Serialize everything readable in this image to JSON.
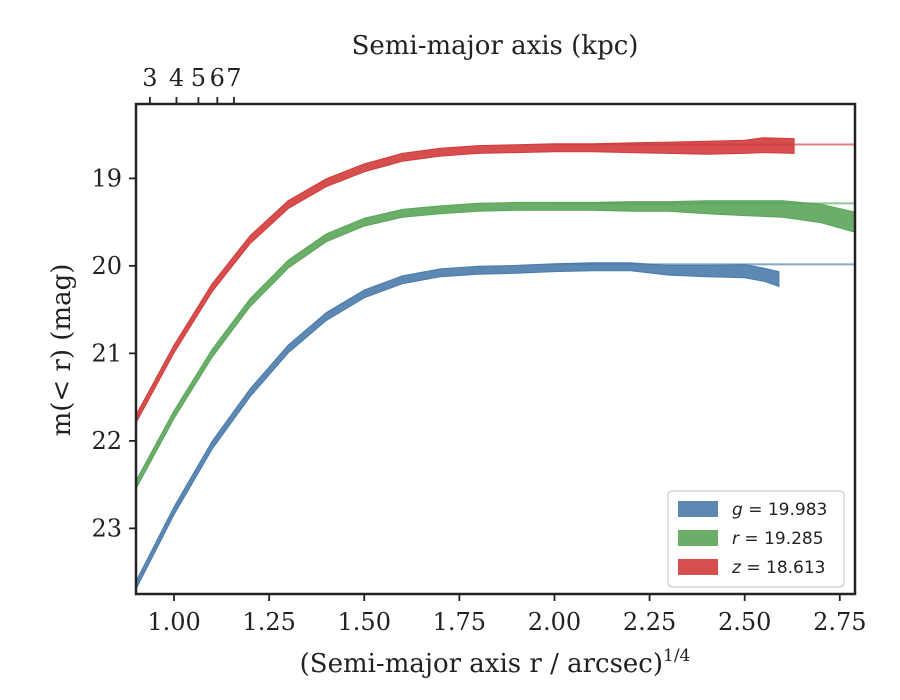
{
  "chart_data": {
    "type": "line",
    "xlabel": "(Semi-major axis r / arcsec)",
    "xlabel_exponent": "1/4",
    "ylabel": "m(< r) (mag)",
    "top_xlabel": "Semi-major axis (kpc)",
    "xlim": [
      0.9,
      2.79
    ],
    "ylim": [
      23.75,
      18.15
    ],
    "y_inverted": true,
    "xticks": [
      1.0,
      1.25,
      1.5,
      1.75,
      2.0,
      2.25,
      2.5,
      2.75
    ],
    "xtick_labels": [
      "1.00",
      "1.25",
      "1.50",
      "1.75",
      "2.00",
      "2.25",
      "2.50",
      "2.75"
    ],
    "yticks": [
      19,
      20,
      21,
      22,
      23
    ],
    "ytick_labels": [
      "19",
      "20",
      "21",
      "22",
      "23"
    ],
    "top_xticks": [
      3,
      4,
      5,
      6,
      7
    ],
    "top_xtick_labels": [
      "3",
      "4",
      "5",
      "6",
      "7"
    ],
    "grid": false,
    "legend_position": "lower-right",
    "series": [
      {
        "name": "g = 19.983",
        "band": "g",
        "value": "19.983",
        "color": "#4a7bab",
        "model_asymptote": 19.983,
        "x": [
          0.9,
          1.0,
          1.1,
          1.2,
          1.3,
          1.4,
          1.5,
          1.6,
          1.7,
          1.8,
          1.9,
          2.0,
          2.1,
          2.2,
          2.3,
          2.4,
          2.5,
          2.55,
          2.59
        ],
        "y": [
          23.65,
          22.8,
          22.05,
          21.45,
          20.95,
          20.58,
          20.32,
          20.16,
          20.08,
          20.05,
          20.04,
          20.02,
          20.01,
          20.01,
          20.05,
          20.06,
          20.06,
          20.1,
          20.15
        ],
        "yerr": [
          0.02,
          0.02,
          0.02,
          0.02,
          0.02,
          0.02,
          0.02,
          0.02,
          0.02,
          0.02,
          0.02,
          0.02,
          0.02,
          0.02,
          0.03,
          0.04,
          0.05,
          0.05,
          0.06
        ]
      },
      {
        "name": "r = 19.285",
        "band": "r",
        "value": "19.285",
        "color": "#5aa55a",
        "model_asymptote": 19.285,
        "x": [
          0.9,
          1.0,
          1.1,
          1.2,
          1.3,
          1.4,
          1.5,
          1.6,
          1.7,
          1.8,
          1.9,
          2.0,
          2.1,
          2.2,
          2.3,
          2.4,
          2.5,
          2.6,
          2.7,
          2.79
        ],
        "y": [
          22.5,
          21.7,
          21.0,
          20.42,
          19.98,
          19.68,
          19.5,
          19.4,
          19.36,
          19.33,
          19.32,
          19.32,
          19.32,
          19.32,
          19.32,
          19.33,
          19.34,
          19.35,
          19.4,
          19.5
        ],
        "yerr": [
          0.02,
          0.02,
          0.02,
          0.02,
          0.02,
          0.02,
          0.02,
          0.02,
          0.02,
          0.02,
          0.02,
          0.02,
          0.02,
          0.03,
          0.03,
          0.05,
          0.06,
          0.07,
          0.08,
          0.09
        ]
      },
      {
        "name": "z = 18.613",
        "band": "z",
        "value": "18.613",
        "color": "#d13b3b",
        "model_asymptote": 18.613,
        "x": [
          0.9,
          1.0,
          1.1,
          1.2,
          1.3,
          1.4,
          1.5,
          1.6,
          1.7,
          1.8,
          1.9,
          2.0,
          2.1,
          2.2,
          2.3,
          2.4,
          2.5,
          2.55,
          2.63
        ],
        "y": [
          21.75,
          20.95,
          20.25,
          19.7,
          19.3,
          19.05,
          18.88,
          18.76,
          18.7,
          18.67,
          18.66,
          18.65,
          18.65,
          18.65,
          18.65,
          18.65,
          18.64,
          18.62,
          18.63
        ],
        "yerr": [
          0.02,
          0.02,
          0.02,
          0.02,
          0.02,
          0.02,
          0.02,
          0.02,
          0.02,
          0.02,
          0.02,
          0.02,
          0.02,
          0.03,
          0.04,
          0.05,
          0.05,
          0.06,
          0.06
        ]
      }
    ]
  }
}
